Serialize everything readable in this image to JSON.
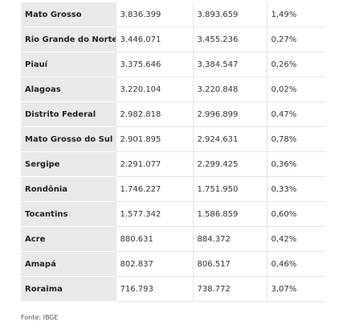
{
  "table": {
    "rows": [
      [
        "Mato Grosso",
        "3.836.399",
        "3.893.659",
        "1,49%"
      ],
      [
        "Rio Grande do Norte",
        "3.446.071",
        "3.455.236",
        "0,27%"
      ],
      [
        "Piauí",
        "3.375.646",
        "3.384.547",
        "0,26%"
      ],
      [
        "Alagoas",
        "3.220.104",
        "3.220.848",
        "0,02%"
      ],
      [
        "Distrito Federal",
        "2.982.818",
        "2.996.899",
        "0,47%"
      ],
      [
        "Mato Grosso do Sul",
        "2.901.895",
        "2.924.631",
        "0,78%"
      ],
      [
        "Sergipe",
        "2.291.077",
        "2.299.425",
        "0,36%"
      ],
      [
        "Rondônia",
        "1.746.227",
        "1.751.950",
        "0,33%"
      ],
      [
        "Tocantins",
        "1.577.342",
        "1.586.859",
        "0,60%"
      ],
      [
        "Acre",
        "880.631",
        "884.372",
        "0,42%"
      ],
      [
        "Amapá",
        "802.837",
        "806.517",
        "0,46%"
      ],
      [
        "Roraima",
        "716.793",
        "738.772",
        "3,07%"
      ]
    ]
  },
  "footer": {
    "source": "Fonte: IBGE"
  }
}
